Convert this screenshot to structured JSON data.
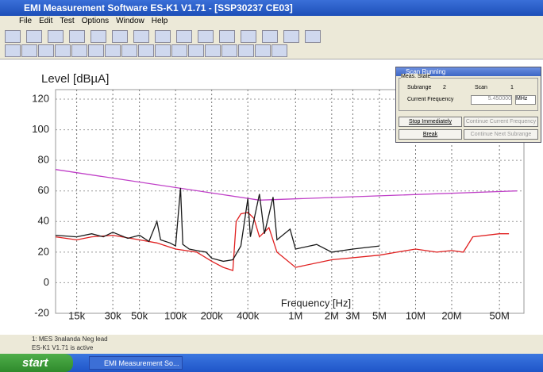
{
  "window": {
    "title": "EMI Measurement Software ES-K1 V1.71 - [SSP30237 CE03]"
  },
  "menu": [
    "File",
    "Edit",
    "Test",
    "Options",
    "Window",
    "Help"
  ],
  "chart_data": {
    "type": "line",
    "y_label": "Level [dBµA]",
    "x_label": "Frequency [Hz]",
    "log_x": true,
    "grid": true,
    "xlim": [
      10000,
      80000000
    ],
    "ylim": [
      -20,
      120
    ],
    "yticks": [
      -20,
      0,
      20,
      40,
      60,
      80,
      100,
      120
    ],
    "xticks": [
      {
        "value": 15000,
        "label": "15k"
      },
      {
        "value": 30000,
        "label": "30k"
      },
      {
        "value": 50000,
        "label": "50k"
      },
      {
        "value": 100000,
        "label": "100k"
      },
      {
        "value": 200000,
        "label": "200k"
      },
      {
        "value": 400000,
        "label": "400k"
      },
      {
        "value": 1000000,
        "label": "1M"
      },
      {
        "value": 2000000,
        "label": "2M"
      },
      {
        "value": 3000000,
        "label": "3M"
      },
      {
        "value": 5000000,
        "label": "5M"
      },
      {
        "value": 10000000,
        "label": "10M"
      },
      {
        "value": 20000000,
        "label": "20M"
      },
      {
        "value": 50000000,
        "label": "50M"
      }
    ],
    "series": [
      {
        "color": "#c040c8",
        "x": [
          10000,
          500000,
          70000000
        ],
        "values": [
          74,
          54,
          60
        ]
      },
      {
        "color": "#e02020",
        "x": [
          10000,
          15000,
          20000,
          30000,
          50000,
          70000,
          100000,
          150000,
          200000,
          250000,
          300000,
          320000,
          350000,
          400000,
          450000,
          500000,
          600000,
          700000,
          1000000,
          2000000,
          5000000,
          7000000,
          10000000,
          15000000,
          20000000,
          25000000,
          30000000,
          50000000,
          60000000
        ],
        "values": [
          30,
          28,
          30,
          31,
          28,
          26,
          22,
          20,
          14,
          10,
          8,
          40,
          45,
          46,
          42,
          30,
          36,
          20,
          10,
          15,
          18,
          20,
          22,
          20,
          21,
          20,
          30,
          32,
          32
        ]
      },
      {
        "color": "#1a1a1a",
        "x": [
          10000,
          15000,
          20000,
          25000,
          30000,
          40000,
          50000,
          60000,
          70000,
          75000,
          90000,
          100000,
          110000,
          115000,
          130000,
          150000,
          180000,
          200000,
          250000,
          300000,
          350000,
          400000,
          420000,
          500000,
          550000,
          650000,
          700000,
          900000,
          1000000,
          1500000,
          2000000,
          3000000,
          5000000
        ],
        "values": [
          31,
          30,
          32,
          30,
          33,
          29,
          31,
          27,
          40,
          28,
          26,
          24,
          62,
          25,
          22,
          21,
          20,
          16,
          14,
          15,
          24,
          55,
          30,
          58,
          32,
          56,
          28,
          35,
          22,
          25,
          20,
          22,
          24
        ]
      }
    ]
  },
  "dialog": {
    "title": "Scan Running",
    "group": "Meas. State",
    "subrange_label": "Subrange",
    "subrange": "2",
    "scan_label": "Scan",
    "scan": "1",
    "freq_label": "Current Frequency",
    "freq": "5.450000",
    "unit": "MHz",
    "buttons": [
      "Stop Immediately",
      "Continue Current Frequency",
      "Break",
      "Continue Next Subrange"
    ]
  },
  "status": [
    "1: MES 3nalanda Neg lead",
    "ES-K1 V1.71 is active"
  ],
  "taskbar": {
    "start": "start",
    "task": "EMI Measurement So..."
  }
}
